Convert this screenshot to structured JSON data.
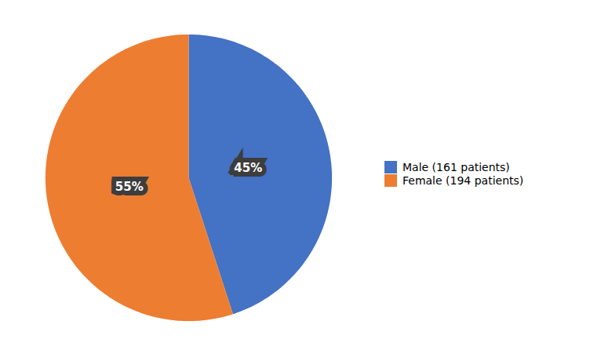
{
  "chart_data": {
    "type": "pie",
    "categories": [
      "Male (161 patients)",
      "Female (194 patients)"
    ],
    "values": [
      45,
      55
    ],
    "value_labels": [
      "45%",
      "55%"
    ],
    "colors": [
      "#4472C4",
      "#ED7D31"
    ],
    "data_labels": true,
    "legend": "right"
  }
}
